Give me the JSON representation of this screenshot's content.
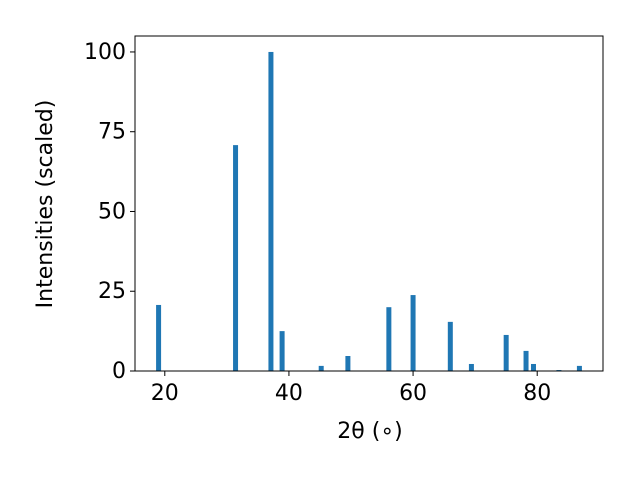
{
  "chart_data": {
    "type": "bar",
    "xlabel": "2θ (∘)",
    "ylabel": "Intensities (scaled)",
    "x": [
      19.0,
      31.4,
      37.1,
      38.9,
      45.2,
      49.5,
      56.1,
      60.0,
      66.0,
      69.4,
      75.0,
      78.2,
      79.4,
      83.5,
      86.8
    ],
    "values": [
      20.7,
      70.8,
      100,
      12.5,
      1.6,
      4.7,
      20,
      23.8,
      15.4,
      2.2,
      11.3,
      6.3,
      2.2,
      0.3,
      1.6
    ],
    "color": "#1f77b4",
    "xlim": [
      15.2,
      90.6
    ],
    "xticks": [
      20,
      40,
      60,
      80
    ],
    "ylim": [
      0,
      105
    ],
    "yticks": [
      0,
      25,
      50,
      75,
      100
    ]
  }
}
